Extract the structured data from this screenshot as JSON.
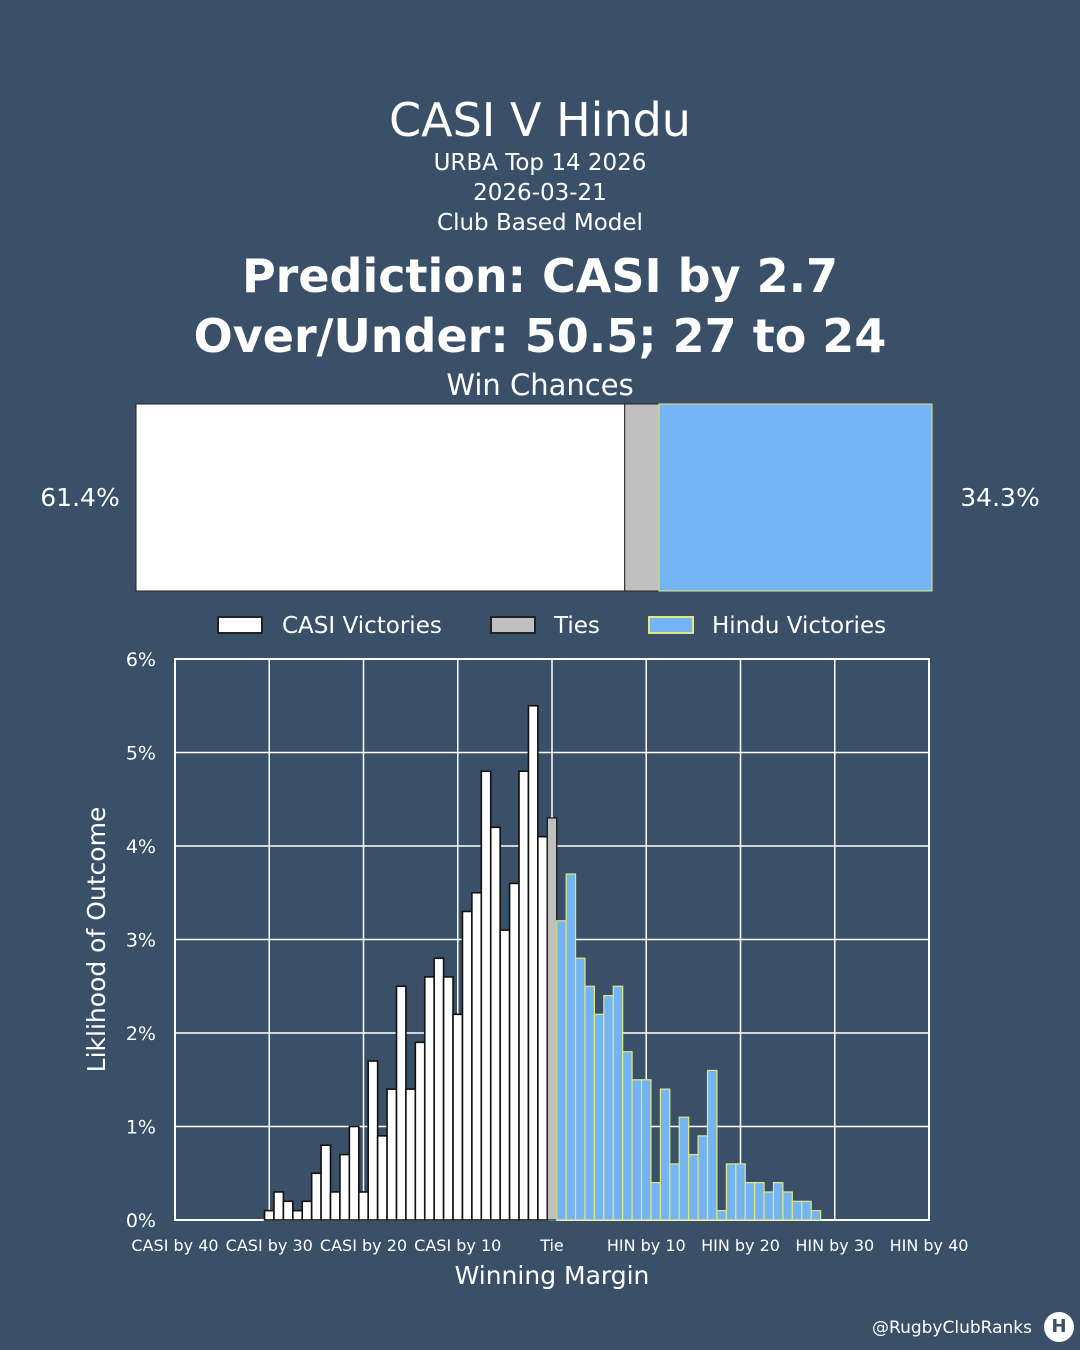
{
  "header": {
    "title": "CASI V Hindu",
    "competition": "URBA Top 14 2026",
    "date": "2026-03-21",
    "model": "Club Based Model",
    "prediction": "Prediction: CASI by 2.7",
    "over_under": "Over/Under: 50.5; 27 to 24",
    "win_chances_title": "Win Chances"
  },
  "footer": {
    "handle": "@RugbyClubRanks",
    "logo_icon": "rugby-posts-icon"
  },
  "colors": {
    "background": "#3a5068",
    "home": "#ffffff",
    "tie": "#c0c0c0",
    "away": "#74b4f4",
    "away_edge": "#e0e87a"
  },
  "chart_data": [
    {
      "type": "bar",
      "orientation": "horizontal-stacked",
      "title": "Win Chances",
      "home_label": "61.4%",
      "away_label": "34.3%",
      "series": [
        {
          "name": "CASI Victories",
          "value": 61.4
        },
        {
          "name": "Ties",
          "value": 4.3
        },
        {
          "name": "Hindu Victories",
          "value": 34.3
        }
      ],
      "legend": [
        "CASI Victories",
        "Ties",
        "Hindu Victories"
      ],
      "legend_position": "bottom"
    },
    {
      "type": "bar",
      "xlabel": "Winning Margin",
      "ylabel": "Liklihood of Outcome",
      "xlim": [
        -40,
        40
      ],
      "ylim": [
        0,
        6
      ],
      "grid": true,
      "x_ticks": [
        -40,
        -30,
        -20,
        -10,
        0,
        10,
        20,
        30,
        40
      ],
      "x_tick_labels": [
        "CASI by 40",
        "CASI by 30",
        "CASI by 20",
        "CASI by 10",
        "Tie",
        "HIN by 10",
        "HIN by 20",
        "HIN by 30",
        "HIN by 40"
      ],
      "y_ticks": [
        0,
        1,
        2,
        3,
        4,
        5,
        6
      ],
      "y_tick_labels": [
        "0%",
        "1%",
        "2%",
        "3%",
        "4%",
        "5%",
        "6%"
      ],
      "home_series": {
        "name": "CASI Victories",
        "margins": [
          -30,
          -29,
          -28,
          -27,
          -26,
          -25,
          -24,
          -23,
          -22,
          -21,
          -20,
          -19,
          -18,
          -17,
          -16,
          -15,
          -14,
          -13,
          -12,
          -11,
          -10,
          -9,
          -8,
          -7,
          -6,
          -5,
          -4,
          -3,
          -2,
          -1
        ],
        "values": [
          0.1,
          0.3,
          0.2,
          0.1,
          0.2,
          0.5,
          0.8,
          0.3,
          0.7,
          1.0,
          0.3,
          1.7,
          0.9,
          1.4,
          2.5,
          1.4,
          1.9,
          2.6,
          2.8,
          2.6,
          2.2,
          3.3,
          3.5,
          4.8,
          4.2,
          3.1,
          3.6,
          4.8,
          5.5,
          4.1
        ]
      },
      "tie_series": {
        "name": "Ties",
        "margins": [
          0
        ],
        "values": [
          4.3
        ]
      },
      "away_series": {
        "name": "Hindu Victories",
        "margins": [
          1,
          2,
          3,
          4,
          5,
          6,
          7,
          8,
          9,
          10,
          11,
          12,
          13,
          14,
          15,
          16,
          17,
          18,
          19,
          20,
          21,
          22,
          23,
          24,
          25,
          26,
          27,
          28
        ],
        "values": [
          3.2,
          3.7,
          2.8,
          2.5,
          2.2,
          2.4,
          2.5,
          1.8,
          1.5,
          1.5,
          0.4,
          1.4,
          0.6,
          1.1,
          0.7,
          0.9,
          1.6,
          0.1,
          0.6,
          0.6,
          0.4,
          0.4,
          0.3,
          0.4,
          0.3,
          0.2,
          0.2,
          0.1
        ]
      }
    }
  ]
}
